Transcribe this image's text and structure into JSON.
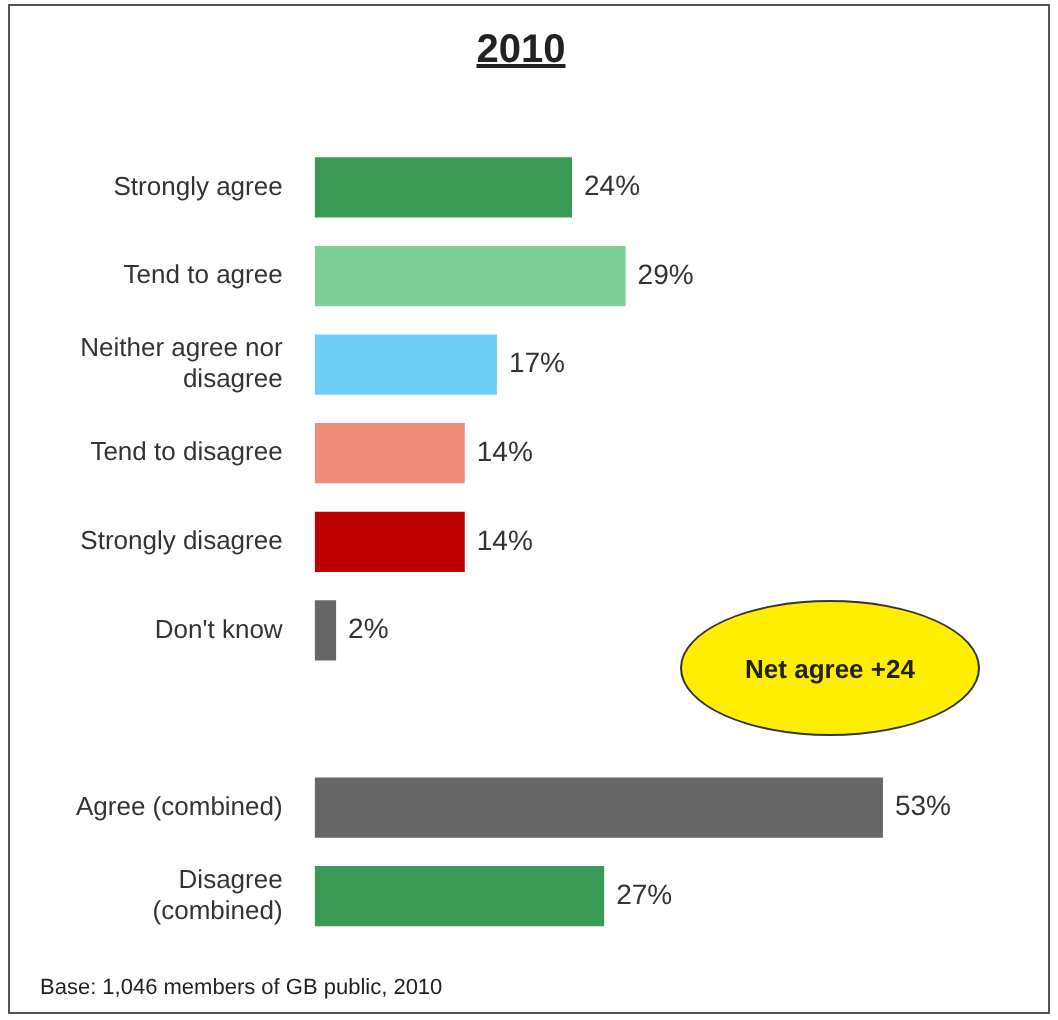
{
  "chart_data": {
    "type": "bar",
    "orientation": "horizontal",
    "title": "2010",
    "categories": [
      "Strongly agree",
      "Tend to agree",
      "Neither agree nor disagree",
      "Tend to disagree",
      "Strongly disagree",
      "Don't know",
      null,
      "Agree (combined)",
      "Disagree (combined)"
    ],
    "values": [
      24,
      29,
      17,
      14,
      14,
      2,
      null,
      53,
      27
    ],
    "colors": [
      "#3a9a56",
      "#7dcf97",
      "#6dcdf5",
      "#f08c7a",
      "#c00000",
      "#666666",
      "#666666",
      "#666666",
      "#3a9a56"
    ],
    "value_labels": [
      "24%",
      "29%",
      "17%",
      "14%",
      "14%",
      "2%",
      null,
      "53%",
      "27%"
    ],
    "annotations": [
      "Net agree +24",
      "Base: 1,046 members of GB public, 2010"
    ]
  }
}
